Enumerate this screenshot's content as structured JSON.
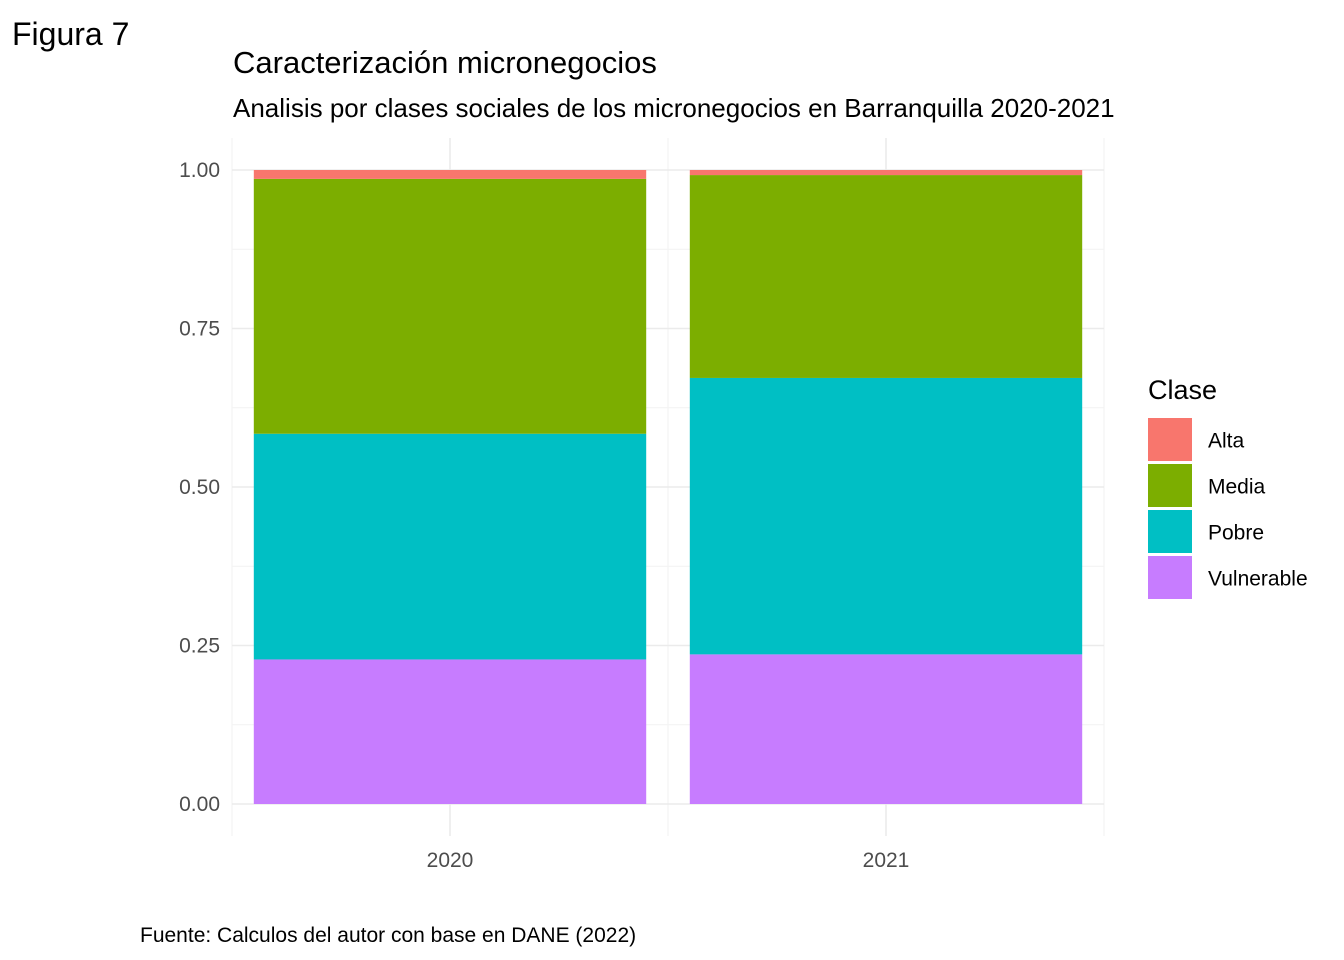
{
  "figure_label": "Figura 7",
  "caption": "Fuente: Calculos del autor con base en DANE (2022)",
  "chart_data": {
    "type": "bar",
    "stacked": true,
    "title": "Caracterización micronegocios",
    "subtitle": "Analisis por clases sociales de los micronegocios en Barranquilla 2020-2021",
    "xlabel": "",
    "ylabel": "",
    "categories": [
      "2020",
      "2021"
    ],
    "ylim": [
      0,
      1
    ],
    "yticks": [
      0,
      0.25,
      0.5,
      0.75,
      1
    ],
    "ytick_labels": [
      "0.00",
      "0.25",
      "0.50",
      "0.75",
      "1.00"
    ],
    "grid": true,
    "legend": {
      "title": "Clase",
      "placement": "right"
    },
    "series": [
      {
        "name": "Vulnerable",
        "color": "#C77CFF",
        "values": [
          0.228,
          0.236
        ]
      },
      {
        "name": "Pobre",
        "color": "#00BFC4",
        "values": [
          0.356,
          0.436
        ]
      },
      {
        "name": "Media",
        "color": "#7CAE00",
        "values": [
          0.402,
          0.32
        ]
      },
      {
        "name": "Alta",
        "color": "#F8766D",
        "values": [
          0.014,
          0.008
        ]
      }
    ],
    "legend_order": [
      "Alta",
      "Media",
      "Pobre",
      "Vulnerable"
    ]
  }
}
